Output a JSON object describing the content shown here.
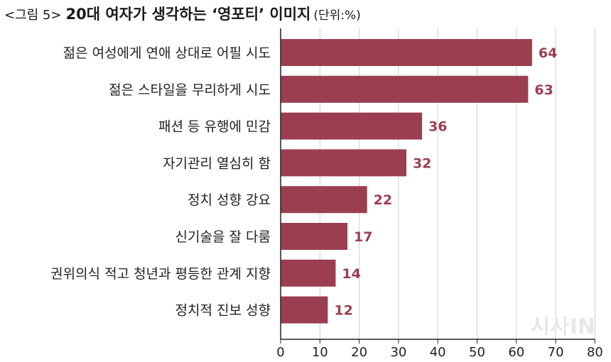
{
  "header": {
    "figure_label": "<그림 5>",
    "title": "20대 여자가 생각하는 ‘영포티’ 이미지",
    "unit": "(단위:%)"
  },
  "watermark": "시사IN",
  "colors": {
    "bar": "#9b3f50",
    "value_label": "#9b3f50",
    "grid": "#cfcfcf",
    "axis": "#222222"
  },
  "chart_data": {
    "type": "bar",
    "orientation": "horizontal",
    "title": "20대 여자가 생각하는 ‘영포티’ 이미지",
    "unit": "(단위:%)",
    "categories": [
      "젊은 여성에게 연애 상대로 어필 시도",
      "젊은 스타일을 무리하게 시도",
      "패션 등 유행에 민감",
      "자기관리 열심히 함",
      "정치 성향 강요",
      "신기술을 잘 다룸",
      "권위의식 적고 청년과 평등한 관계 지향",
      "정치적 진보 성향"
    ],
    "values": [
      64,
      63,
      36,
      32,
      22,
      17,
      14,
      12
    ],
    "xlim": [
      0,
      80
    ],
    "xticks": [
      0,
      10,
      20,
      30,
      40,
      50,
      60,
      70,
      80
    ],
    "grid": true,
    "legend": "none"
  }
}
